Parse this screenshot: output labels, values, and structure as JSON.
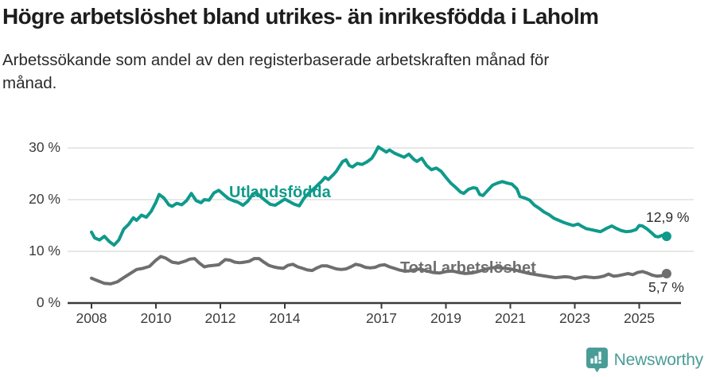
{
  "header": {
    "title": "Högre arbetslöshet bland utrikes- än inrikesfödda i Laholm",
    "subtitle_line1": "Arbetssökande som andel av den registerbaserade arbetskraften månad för",
    "subtitle_line2": "månad."
  },
  "chart_data": {
    "type": "line",
    "title": "Högre arbetslöshet bland utrikes- än inrikesfödda i Laholm",
    "subtitle": "Arbetssökande som andel av den registerbaserade arbetskraften månad för månad.",
    "xlabel": "",
    "ylabel": "",
    "grid": "horizontal",
    "legend_position": "inline-on-lines",
    "x_axis": {
      "ticks": [
        2008,
        2010,
        2012,
        2014,
        2017,
        2019,
        2021,
        2023,
        2025
      ],
      "range": [
        2007.3,
        2026.4
      ]
    },
    "y_axis": {
      "ticks": [
        0,
        10,
        20,
        30
      ],
      "tick_labels": [
        "0 %",
        "10 %",
        "20 %",
        "30 %"
      ],
      "range": [
        0,
        32
      ],
      "unit": "%"
    },
    "series": [
      {
        "name": "Utlandsfödda",
        "color": "#0f9a8b",
        "end_value": 12.9,
        "end_label": "12,9 %",
        "points": [
          [
            2008.0,
            13.7
          ],
          [
            2008.1,
            12.6
          ],
          [
            2008.25,
            12.2
          ],
          [
            2008.4,
            12.9
          ],
          [
            2008.55,
            11.9
          ],
          [
            2008.7,
            11.2
          ],
          [
            2008.85,
            12.2
          ],
          [
            2009.0,
            14.3
          ],
          [
            2009.15,
            15.2
          ],
          [
            2009.3,
            16.5
          ],
          [
            2009.4,
            16.0
          ],
          [
            2009.55,
            17.0
          ],
          [
            2009.7,
            16.6
          ],
          [
            2009.85,
            17.7
          ],
          [
            2010.0,
            19.5
          ],
          [
            2010.1,
            21.0
          ],
          [
            2010.25,
            20.3
          ],
          [
            2010.4,
            19.0
          ],
          [
            2010.5,
            18.7
          ],
          [
            2010.65,
            19.3
          ],
          [
            2010.8,
            19.0
          ],
          [
            2010.95,
            19.8
          ],
          [
            2011.1,
            21.2
          ],
          [
            2011.25,
            19.8
          ],
          [
            2011.4,
            19.4
          ],
          [
            2011.5,
            20.0
          ],
          [
            2011.65,
            19.9
          ],
          [
            2011.8,
            21.3
          ],
          [
            2011.95,
            21.8
          ],
          [
            2012.1,
            21.0
          ],
          [
            2012.25,
            20.2
          ],
          [
            2012.4,
            19.8
          ],
          [
            2012.55,
            19.5
          ],
          [
            2012.7,
            18.9
          ],
          [
            2012.85,
            19.7
          ],
          [
            2013.0,
            21.0
          ],
          [
            2013.1,
            21.4
          ],
          [
            2013.25,
            20.6
          ],
          [
            2013.4,
            19.8
          ],
          [
            2013.55,
            19.1
          ],
          [
            2013.7,
            18.9
          ],
          [
            2013.85,
            19.5
          ],
          [
            2014.0,
            20.1
          ],
          [
            2014.15,
            19.6
          ],
          [
            2014.3,
            19.1
          ],
          [
            2014.45,
            18.8
          ],
          [
            2014.6,
            20.3
          ],
          [
            2014.75,
            21.3
          ],
          [
            2014.9,
            22.1
          ],
          [
            2015.05,
            23.0
          ],
          [
            2015.15,
            23.6
          ],
          [
            2015.25,
            24.3
          ],
          [
            2015.35,
            23.9
          ],
          [
            2015.5,
            24.8
          ],
          [
            2015.6,
            25.5
          ],
          [
            2015.7,
            26.5
          ],
          [
            2015.8,
            27.4
          ],
          [
            2015.9,
            27.7
          ],
          [
            2016.0,
            26.6
          ],
          [
            2016.1,
            26.3
          ],
          [
            2016.25,
            27.0
          ],
          [
            2016.4,
            26.8
          ],
          [
            2016.55,
            27.3
          ],
          [
            2016.7,
            28.0
          ],
          [
            2016.8,
            29.0
          ],
          [
            2016.9,
            30.2
          ],
          [
            2017.0,
            29.8
          ],
          [
            2017.15,
            29.2
          ],
          [
            2017.25,
            29.6
          ],
          [
            2017.4,
            29.0
          ],
          [
            2017.55,
            28.6
          ],
          [
            2017.7,
            28.2
          ],
          [
            2017.85,
            28.8
          ],
          [
            2018.0,
            27.8
          ],
          [
            2018.1,
            27.4
          ],
          [
            2018.25,
            28.0
          ],
          [
            2018.4,
            26.6
          ],
          [
            2018.55,
            25.8
          ],
          [
            2018.7,
            26.1
          ],
          [
            2018.85,
            25.5
          ],
          [
            2019.0,
            24.3
          ],
          [
            2019.15,
            23.2
          ],
          [
            2019.3,
            22.4
          ],
          [
            2019.45,
            21.5
          ],
          [
            2019.55,
            21.2
          ],
          [
            2019.7,
            22.0
          ],
          [
            2019.85,
            22.3
          ],
          [
            2019.95,
            22.2
          ],
          [
            2020.05,
            21.0
          ],
          [
            2020.15,
            20.8
          ],
          [
            2020.3,
            21.8
          ],
          [
            2020.45,
            22.8
          ],
          [
            2020.6,
            23.2
          ],
          [
            2020.75,
            23.5
          ],
          [
            2020.9,
            23.2
          ],
          [
            2021.05,
            23.0
          ],
          [
            2021.2,
            22.1
          ],
          [
            2021.3,
            20.6
          ],
          [
            2021.45,
            20.3
          ],
          [
            2021.6,
            19.9
          ],
          [
            2021.75,
            18.9
          ],
          [
            2021.9,
            18.3
          ],
          [
            2022.05,
            17.6
          ],
          [
            2022.2,
            17.1
          ],
          [
            2022.35,
            16.4
          ],
          [
            2022.5,
            16.0
          ],
          [
            2022.65,
            15.6
          ],
          [
            2022.8,
            15.3
          ],
          [
            2022.95,
            15.0
          ],
          [
            2023.1,
            15.3
          ],
          [
            2023.2,
            14.9
          ],
          [
            2023.35,
            14.4
          ],
          [
            2023.5,
            14.2
          ],
          [
            2023.65,
            14.0
          ],
          [
            2023.8,
            13.8
          ],
          [
            2024.0,
            14.5
          ],
          [
            2024.15,
            14.9
          ],
          [
            2024.3,
            14.4
          ],
          [
            2024.45,
            14.0
          ],
          [
            2024.6,
            13.8
          ],
          [
            2024.75,
            13.9
          ],
          [
            2024.9,
            14.2
          ],
          [
            2025.0,
            15.0
          ],
          [
            2025.1,
            14.9
          ],
          [
            2025.25,
            14.3
          ],
          [
            2025.4,
            13.5
          ],
          [
            2025.5,
            12.9
          ],
          [
            2025.6,
            12.8
          ],
          [
            2025.7,
            13.1
          ],
          [
            2025.85,
            12.9
          ]
        ]
      },
      {
        "name": "Total arbetslöshet",
        "color": "#6e6e6e",
        "end_value": 5.7,
        "end_label": "5,7 %",
        "points": [
          [
            2008.0,
            4.8
          ],
          [
            2008.2,
            4.3
          ],
          [
            2008.4,
            3.8
          ],
          [
            2008.6,
            3.7
          ],
          [
            2008.8,
            4.1
          ],
          [
            2009.0,
            4.9
          ],
          [
            2009.2,
            5.7
          ],
          [
            2009.4,
            6.5
          ],
          [
            2009.6,
            6.7
          ],
          [
            2009.8,
            7.1
          ],
          [
            2010.0,
            8.3
          ],
          [
            2010.15,
            9.0
          ],
          [
            2010.3,
            8.7
          ],
          [
            2010.5,
            7.9
          ],
          [
            2010.7,
            7.7
          ],
          [
            2010.9,
            8.1
          ],
          [
            2011.05,
            8.5
          ],
          [
            2011.2,
            8.6
          ],
          [
            2011.35,
            7.7
          ],
          [
            2011.5,
            7.0
          ],
          [
            2011.65,
            7.2
          ],
          [
            2011.8,
            7.3
          ],
          [
            2011.95,
            7.4
          ],
          [
            2012.15,
            8.4
          ],
          [
            2012.3,
            8.3
          ],
          [
            2012.45,
            7.9
          ],
          [
            2012.6,
            7.8
          ],
          [
            2012.75,
            7.9
          ],
          [
            2012.9,
            8.1
          ],
          [
            2013.05,
            8.6
          ],
          [
            2013.2,
            8.6
          ],
          [
            2013.35,
            7.9
          ],
          [
            2013.5,
            7.3
          ],
          [
            2013.65,
            7.0
          ],
          [
            2013.8,
            6.8
          ],
          [
            2013.95,
            6.7
          ],
          [
            2014.1,
            7.3
          ],
          [
            2014.25,
            7.5
          ],
          [
            2014.4,
            7.0
          ],
          [
            2014.55,
            6.7
          ],
          [
            2014.7,
            6.4
          ],
          [
            2014.85,
            6.3
          ],
          [
            2015.0,
            6.8
          ],
          [
            2015.15,
            7.2
          ],
          [
            2015.3,
            7.2
          ],
          [
            2015.45,
            6.9
          ],
          [
            2015.6,
            6.6
          ],
          [
            2015.75,
            6.5
          ],
          [
            2015.9,
            6.6
          ],
          [
            2016.05,
            7.0
          ],
          [
            2016.2,
            7.5
          ],
          [
            2016.35,
            7.3
          ],
          [
            2016.5,
            6.9
          ],
          [
            2016.65,
            6.8
          ],
          [
            2016.8,
            6.9
          ],
          [
            2016.95,
            7.3
          ],
          [
            2017.1,
            7.4
          ],
          [
            2017.25,
            7.0
          ],
          [
            2017.4,
            6.7
          ],
          [
            2017.55,
            6.4
          ],
          [
            2017.7,
            6.2
          ],
          [
            2017.85,
            6.2
          ],
          [
            2018.0,
            6.4
          ],
          [
            2018.2,
            6.6
          ],
          [
            2018.4,
            6.2
          ],
          [
            2018.6,
            5.9
          ],
          [
            2018.8,
            5.8
          ],
          [
            2019.0,
            6.1
          ],
          [
            2019.2,
            6.2
          ],
          [
            2019.4,
            5.9
          ],
          [
            2019.6,
            5.7
          ],
          [
            2019.8,
            5.8
          ],
          [
            2020.0,
            6.1
          ],
          [
            2020.2,
            6.5
          ],
          [
            2020.4,
            6.8
          ],
          [
            2020.6,
            6.9
          ],
          [
            2020.8,
            6.7
          ],
          [
            2021.0,
            6.6
          ],
          [
            2021.2,
            6.3
          ],
          [
            2021.4,
            6.0
          ],
          [
            2021.6,
            5.7
          ],
          [
            2021.8,
            5.5
          ],
          [
            2022.0,
            5.3
          ],
          [
            2022.2,
            5.1
          ],
          [
            2022.4,
            4.9
          ],
          [
            2022.55,
            5.0
          ],
          [
            2022.7,
            5.1
          ],
          [
            2022.85,
            5.0
          ],
          [
            2023.0,
            4.7
          ],
          [
            2023.15,
            4.9
          ],
          [
            2023.3,
            5.1
          ],
          [
            2023.45,
            5.0
          ],
          [
            2023.6,
            4.9
          ],
          [
            2023.75,
            5.0
          ],
          [
            2023.9,
            5.2
          ],
          [
            2024.05,
            5.6
          ],
          [
            2024.2,
            5.2
          ],
          [
            2024.35,
            5.3
          ],
          [
            2024.5,
            5.5
          ],
          [
            2024.65,
            5.7
          ],
          [
            2024.8,
            5.5
          ],
          [
            2024.95,
            5.9
          ],
          [
            2025.1,
            6.1
          ],
          [
            2025.25,
            5.8
          ],
          [
            2025.4,
            5.4
          ],
          [
            2025.55,
            5.2
          ],
          [
            2025.7,
            5.3
          ],
          [
            2025.85,
            5.7
          ]
        ]
      }
    ]
  },
  "footer": {
    "brand": "Newsworthy",
    "brand_color": "#4a9d97",
    "icon": "bar-chart-pin-icon"
  }
}
